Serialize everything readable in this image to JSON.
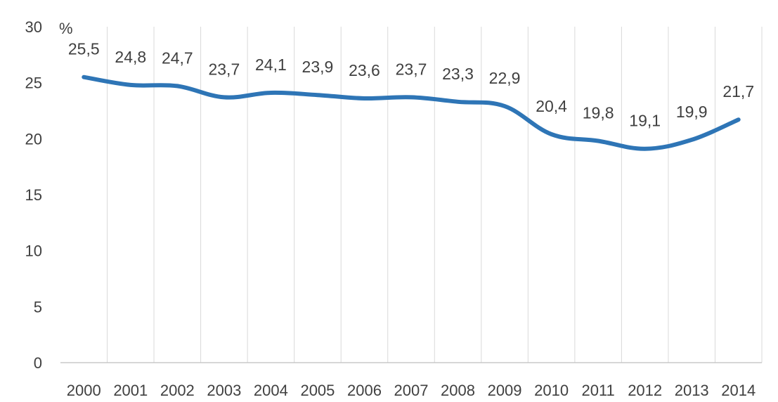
{
  "chart_data": {
    "type": "line",
    "title": "",
    "xlabel": "",
    "ylabel": "%",
    "x": [
      "2000",
      "2001",
      "2002",
      "2003",
      "2004",
      "2005",
      "2006",
      "2007",
      "2008",
      "2009",
      "2010",
      "2011",
      "2012",
      "2013",
      "2014"
    ],
    "series": [
      {
        "values": [
          25.5,
          24.8,
          24.7,
          23.7,
          24.1,
          23.9,
          23.6,
          23.7,
          23.3,
          22.9,
          20.4,
          19.8,
          19.1,
          19.9,
          21.7
        ],
        "labels": [
          "25,5",
          "24,8",
          "24,7",
          "23,7",
          "24,1",
          "23,9",
          "23,6",
          "23,7",
          "23,3",
          "22,9",
          "20,4",
          "19,8",
          "19,1",
          "19,9",
          "21,7"
        ],
        "color": "#2e75b6"
      }
    ],
    "y_ticks": [
      "0",
      "5",
      "10",
      "15",
      "20",
      "25",
      "30"
    ],
    "ylim": [
      0,
      30
    ],
    "grid": "vertical",
    "legend": "none"
  }
}
